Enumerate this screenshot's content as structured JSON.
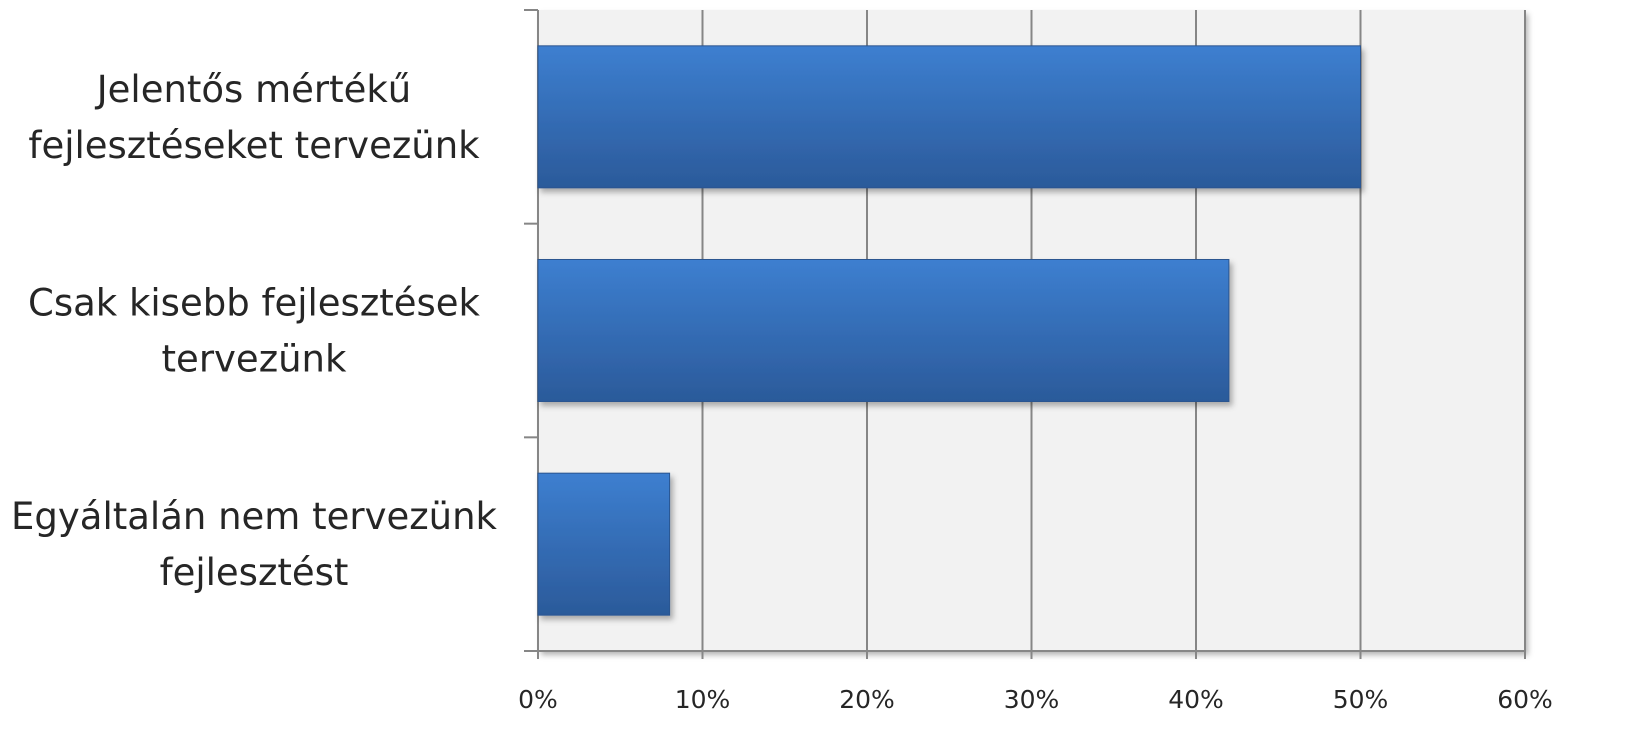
{
  "chart_data": {
    "type": "bar",
    "orientation": "horizontal",
    "categories": [
      "Jelentős mértékű fejlesztéseket tervezünk",
      "Csak kisebb fejlesztések tervezünk",
      "Egyáltalán nem tervezünk fejlesztést"
    ],
    "category_label_lines": [
      [
        "Jelentős mértékű",
        "fejlesztéseket tervezünk"
      ],
      [
        "Csak kisebb fejlesztések",
        "tervezünk"
      ],
      [
        "Egyáltalán nem tervezünk",
        "fejlesztést"
      ]
    ],
    "values": [
      50,
      42,
      8
    ],
    "xlim": [
      0,
      60
    ],
    "x_ticks": [
      0,
      10,
      20,
      30,
      40,
      50,
      60
    ],
    "x_tick_labels": [
      "0%",
      "10%",
      "20%",
      "30%",
      "40%",
      "50%",
      "60%"
    ],
    "title": "",
    "xlabel": "",
    "ylabel": "",
    "grid": "vertical",
    "legend": "none",
    "colors": {
      "bar_top": "#3d7fd0",
      "bar_bottom": "#2b5a9a",
      "bar_edge": "#2a5590",
      "plot_background": "#f2f2f2",
      "gridline": "#868686",
      "axis": "#868686",
      "text": "#262626"
    }
  }
}
